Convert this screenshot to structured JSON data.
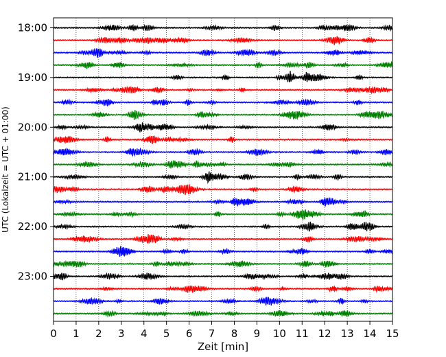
{
  "chart_data": {
    "type": "line",
    "title": "",
    "xlabel": "Zeit  [min]",
    "ylabel": "UTC (Lokalzeit = UTC + 01:00)",
    "xlim": [
      0,
      15
    ],
    "x_ticks": [
      "0",
      "1",
      "2",
      "3",
      "4",
      "5",
      "6",
      "7",
      "8",
      "9",
      "10",
      "11",
      "12",
      "13",
      "14",
      "15"
    ],
    "y_tick_labels": [
      "18:00",
      "19:00",
      "20:00",
      "21:00",
      "22:00",
      "23:00"
    ],
    "trace_interval_min": 15,
    "trace_start": "18:00",
    "trace_count": 24,
    "trace_colors": [
      "#000000",
      "#ff0000",
      "#0000ff",
      "#008000"
    ],
    "grid": "vertical dotted lines at each minute"
  }
}
